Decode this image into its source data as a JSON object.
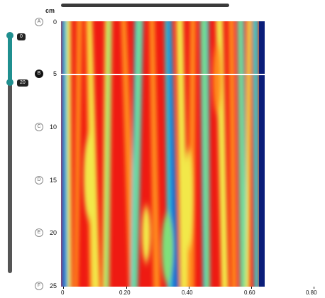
{
  "unit_label": "cm",
  "slider": {
    "top_value": "0",
    "bottom_value": "20"
  },
  "markers": [
    "A",
    "B",
    "C",
    "D",
    "E",
    "F"
  ],
  "active_marker": "B",
  "y_ticks": [
    "0",
    "5",
    "10",
    "15",
    "20",
    "25"
  ],
  "x_ticks": [
    "0",
    "0.20",
    "0.40",
    "0.60",
    "0.80"
  ],
  "heatmap": {
    "colors": {
      "blue": "#1f6fd6",
      "cyan": "#35d0d0",
      "green": "#7fe07a",
      "yellow": "#f2e84a",
      "orange": "#ff8a1e",
      "red": "#ef1a12",
      "dark_blue": "#0b1e7a"
    },
    "palette": [
      "#1f6fd6",
      "#35d0d0",
      "#7fe07a",
      "#f2e84a",
      "#ff8a1e",
      "#ef1a12"
    ]
  }
}
